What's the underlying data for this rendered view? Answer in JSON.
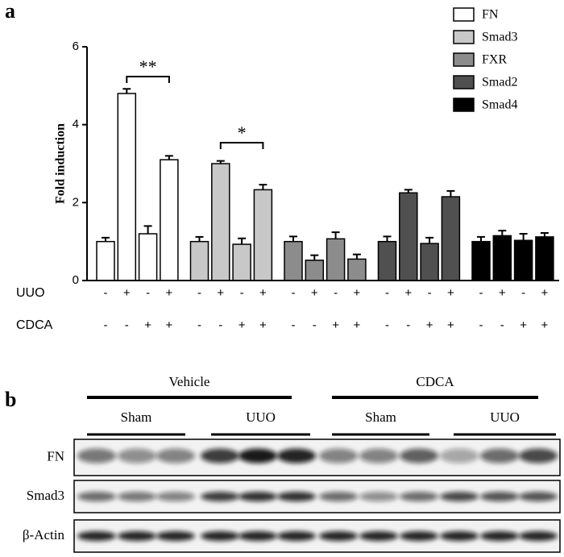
{
  "chart_data": {
    "type": "bar",
    "panel_label": "a",
    "ylabel": "Fold induction",
    "ylim": [
      0,
      6
    ],
    "yticks": [
      0,
      2,
      4,
      6
    ],
    "series": [
      {
        "name": "FN",
        "color": "#ffffff",
        "values": [
          1.0,
          4.8,
          1.2,
          3.1
        ],
        "errors": [
          0.1,
          0.12,
          0.2,
          0.1
        ]
      },
      {
        "name": "Smad3",
        "color": "#c8c8c8",
        "values": [
          1.0,
          3.0,
          0.93,
          2.33
        ],
        "errors": [
          0.12,
          0.07,
          0.15,
          0.13
        ]
      },
      {
        "name": "FXR",
        "color": "#8c8c8c",
        "values": [
          1.0,
          0.52,
          1.07,
          0.55
        ],
        "errors": [
          0.13,
          0.13,
          0.17,
          0.12
        ]
      },
      {
        "name": "Smad2",
        "color": "#505050",
        "values": [
          1.0,
          2.25,
          0.95,
          2.15
        ],
        "errors": [
          0.13,
          0.08,
          0.15,
          0.15
        ]
      },
      {
        "name": "Smad4",
        "color": "#000000",
        "values": [
          1.0,
          1.15,
          1.03,
          1.12
        ],
        "errors": [
          0.12,
          0.13,
          0.17,
          0.1
        ]
      }
    ],
    "conditions": [
      {
        "name": "UUO",
        "labels": [
          "-",
          "+",
          "-",
          "+"
        ]
      },
      {
        "name": "CDCA",
        "labels": [
          "-",
          "-",
          "+",
          "+"
        ]
      }
    ],
    "annotations": [
      "**",
      "*"
    ]
  },
  "blot": {
    "panel_label": "b",
    "groups": [
      {
        "label": "Vehicle",
        "subgroups": [
          "Sham",
          "UUO"
        ]
      },
      {
        "label": "CDCA",
        "subgroups": [
          "Sham",
          "UUO"
        ]
      }
    ],
    "rows": [
      "FN",
      "Smad3",
      "β-Actin"
    ]
  }
}
